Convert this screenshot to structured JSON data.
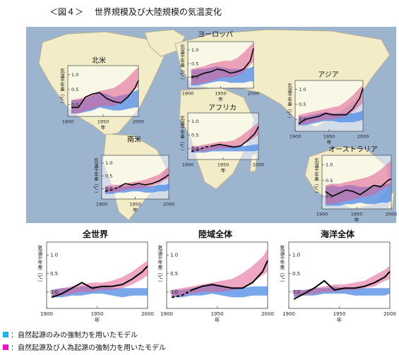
{
  "figure_title": "＜図４＞　 世界規模及び大陸規模の気温変化",
  "colors": {
    "ocean": "#9db4cf",
    "land": "#f2edc8",
    "land_stroke": "#b8b090",
    "natural": "#4d8ae6",
    "anthro": "#e05c92",
    "observed": "#000000",
    "legend_natural": "#19b4e8",
    "legend_anthro": "#e619c8"
  },
  "legend": [
    {
      "label": "：自然起源のみの強制力を用いたモデル",
      "color": "#19b4e8"
    },
    {
      "label": "：自然起源及び人為起源の強制力を用いたモデル",
      "color": "#e619c8"
    }
  ],
  "chart_data": [
    {
      "id": "north-america",
      "type": "area",
      "title": "北米",
      "ylabel": "気温平年差（℃）",
      "xlabel": "年",
      "yticks": [
        "1.0",
        "0.5",
        "0.0"
      ],
      "xticks": [
        "1900",
        "1950",
        "2000"
      ],
      "xlim": [
        1900,
        2000
      ],
      "ylim": [
        -0.4,
        1.3
      ],
      "years": [
        1905,
        1915,
        1925,
        1935,
        1945,
        1955,
        1965,
        1975,
        1985,
        1995,
        2000
      ],
      "natural": {
        "low": [
          -0.3,
          -0.3,
          -0.25,
          -0.2,
          -0.1,
          -0.15,
          -0.2,
          -0.2,
          -0.15,
          -0.1,
          -0.1
        ],
        "high": [
          0.15,
          0.15,
          0.2,
          0.3,
          0.4,
          0.35,
          0.25,
          0.3,
          0.35,
          0.45,
          0.5
        ]
      },
      "anthro": {
        "low": [
          -0.3,
          -0.3,
          -0.2,
          -0.15,
          -0.05,
          -0.05,
          -0.05,
          0.05,
          0.25,
          0.5,
          0.6
        ],
        "high": [
          0.15,
          0.2,
          0.25,
          0.35,
          0.45,
          0.5,
          0.55,
          0.7,
          0.9,
          1.15,
          1.25
        ]
      },
      "observed": [
        -0.1,
        -0.1,
        0.25,
        0.35,
        0.4,
        0.2,
        0.1,
        0.05,
        0.25,
        0.55,
        0.8
      ]
    },
    {
      "id": "europe",
      "type": "area",
      "title": "ヨーロッパ",
      "ylabel": "気温平年差（℃）",
      "xlabel": "年",
      "yticks": [
        "1.0",
        "0.5",
        "0.0"
      ],
      "xticks": [
        "1900",
        "1950",
        "2000"
      ],
      "xlim": [
        1900,
        2000
      ],
      "ylim": [
        -0.4,
        1.3
      ],
      "years": [
        1905,
        1915,
        1925,
        1935,
        1945,
        1955,
        1965,
        1975,
        1985,
        1995,
        2000
      ],
      "natural": {
        "low": [
          -0.3,
          -0.3,
          -0.25,
          -0.2,
          -0.15,
          -0.15,
          -0.2,
          -0.2,
          -0.2,
          -0.15,
          -0.15
        ],
        "high": [
          0.25,
          0.3,
          0.3,
          0.35,
          0.4,
          0.35,
          0.3,
          0.3,
          0.3,
          0.35,
          0.4
        ]
      },
      "anthro": {
        "low": [
          -0.25,
          -0.25,
          -0.2,
          -0.15,
          -0.05,
          0.0,
          0.0,
          0.05,
          0.2,
          0.45,
          0.55
        ],
        "high": [
          0.3,
          0.35,
          0.4,
          0.5,
          0.55,
          0.6,
          0.6,
          0.7,
          0.9,
          1.15,
          1.25
        ]
      },
      "observed": [
        0.0,
        0.05,
        0.15,
        0.2,
        0.3,
        0.25,
        0.15,
        0.2,
        0.3,
        0.6,
        1.05
      ]
    },
    {
      "id": "asia",
      "type": "area",
      "title": "アジア",
      "ylabel": "気温平年差（℃）",
      "xlabel": "年",
      "yticks": [
        "1.0",
        "0.5",
        "0.0"
      ],
      "xticks": [
        "1900",
        "1950",
        "2000"
      ],
      "xlim": [
        1900,
        2000
      ],
      "ylim": [
        -0.4,
        1.3
      ],
      "years": [
        1905,
        1915,
        1925,
        1935,
        1945,
        1955,
        1965,
        1975,
        1985,
        1995,
        2000
      ],
      "natural": {
        "low": [
          -0.2,
          -0.2,
          -0.15,
          -0.1,
          -0.05,
          -0.05,
          -0.1,
          -0.1,
          -0.1,
          -0.05,
          0.0
        ],
        "high": [
          0.1,
          0.1,
          0.15,
          0.2,
          0.25,
          0.2,
          0.2,
          0.2,
          0.2,
          0.25,
          0.3
        ]
      },
      "anthro": {
        "low": [
          -0.2,
          -0.15,
          -0.1,
          -0.05,
          0.0,
          0.0,
          0.05,
          0.1,
          0.25,
          0.45,
          0.55
        ],
        "high": [
          0.15,
          0.2,
          0.25,
          0.3,
          0.35,
          0.4,
          0.45,
          0.6,
          0.8,
          1.05,
          1.15
        ]
      },
      "observed": [
        -0.15,
        0.0,
        0.05,
        0.1,
        0.2,
        0.15,
        0.15,
        0.15,
        0.35,
        0.7,
        1.05
      ]
    },
    {
      "id": "africa",
      "type": "area",
      "title": "アフリカ",
      "ylabel": "気温平年差（℃）",
      "xlabel": "年",
      "yticks": [
        "1.0",
        "0.5",
        "0.0"
      ],
      "xticks": [
        "1900",
        "1950",
        "2000"
      ],
      "xlim": [
        1900,
        2000
      ],
      "ylim": [
        -0.4,
        1.3
      ],
      "years": [
        1905,
        1915,
        1925,
        1935,
        1945,
        1955,
        1965,
        1975,
        1985,
        1995,
        2000
      ],
      "natural": {
        "low": [
          -0.15,
          -0.15,
          -0.15,
          -0.1,
          -0.1,
          -0.1,
          -0.1,
          -0.1,
          -0.1,
          -0.1,
          -0.05
        ],
        "high": [
          0.05,
          0.05,
          0.1,
          0.1,
          0.15,
          0.15,
          0.1,
          0.1,
          0.1,
          0.15,
          0.15
        ]
      },
      "anthro": {
        "low": [
          -0.15,
          -0.1,
          -0.1,
          -0.05,
          0.0,
          0.0,
          0.05,
          0.1,
          0.25,
          0.4,
          0.5
        ],
        "high": [
          0.1,
          0.1,
          0.15,
          0.2,
          0.25,
          0.25,
          0.3,
          0.45,
          0.65,
          0.85,
          0.95
        ]
      },
      "observed": [
        -0.1,
        -0.05,
        0.05,
        0.1,
        0.15,
        0.1,
        0.05,
        0.1,
        0.3,
        0.55,
        0.8
      ],
      "observed_dashed_until": 1935
    },
    {
      "id": "south-america",
      "type": "area",
      "title": "南米",
      "ylabel": "気温平年差（℃）",
      "xlabel": "年",
      "yticks": [
        "1.0",
        "0.5",
        "0.0"
      ],
      "xticks": [
        "1900",
        "1950",
        "2000"
      ],
      "xlim": [
        1900,
        2000
      ],
      "ylim": [
        -0.4,
        1.3
      ],
      "years": [
        1905,
        1915,
        1925,
        1935,
        1945,
        1955,
        1965,
        1975,
        1985,
        1995,
        2000
      ],
      "natural": {
        "low": [
          -0.2,
          -0.2,
          -0.15,
          -0.15,
          -0.1,
          -0.1,
          -0.15,
          -0.15,
          -0.1,
          -0.1,
          -0.05
        ],
        "high": [
          0.05,
          0.05,
          0.1,
          0.1,
          0.15,
          0.15,
          0.1,
          0.1,
          0.15,
          0.15,
          0.2
        ]
      },
      "anthro": {
        "low": [
          -0.15,
          -0.15,
          -0.1,
          -0.05,
          0.0,
          0.0,
          0.05,
          0.1,
          0.2,
          0.35,
          0.4
        ],
        "high": [
          0.1,
          0.15,
          0.15,
          0.2,
          0.25,
          0.3,
          0.35,
          0.45,
          0.55,
          0.75,
          0.85
        ]
      },
      "observed": [
        -0.1,
        -0.05,
        0.05,
        0.2,
        0.15,
        0.2,
        0.15,
        0.2,
        0.3,
        0.45,
        0.55
      ],
      "observed_dashed_until": 1925
    },
    {
      "id": "australia",
      "type": "area",
      "title": "オーストラリア",
      "ylabel": "気温平年差（℃）",
      "xlabel": "年",
      "yticks": [
        "1.0",
        "0.5",
        "0.0"
      ],
      "xticks": [
        "1900",
        "1950",
        "2000"
      ],
      "xlim": [
        1900,
        2000
      ],
      "ylim": [
        -0.4,
        1.3
      ],
      "years": [
        1905,
        1915,
        1925,
        1935,
        1945,
        1955,
        1965,
        1975,
        1985,
        1995,
        2000
      ],
      "natural": {
        "low": [
          -0.3,
          -0.3,
          -0.3,
          -0.25,
          -0.25,
          -0.2,
          -0.25,
          -0.25,
          -0.2,
          -0.2,
          -0.15
        ],
        "high": [
          0.3,
          0.35,
          0.3,
          0.35,
          0.35,
          0.3,
          0.3,
          0.35,
          0.35,
          0.4,
          0.4
        ]
      },
      "anthro": {
        "low": [
          -0.25,
          -0.25,
          -0.2,
          -0.15,
          -0.1,
          -0.05,
          0.0,
          0.05,
          0.2,
          0.3,
          0.35
        ],
        "high": [
          0.35,
          0.4,
          0.4,
          0.45,
          0.5,
          0.55,
          0.6,
          0.7,
          0.85,
          1.05,
          1.15
        ]
      },
      "observed": [
        0.15,
        0.0,
        0.1,
        0.2,
        0.15,
        0.05,
        0.2,
        0.35,
        0.3,
        0.5,
        0.55
      ]
    },
    {
      "id": "global",
      "type": "area",
      "title": "全世界",
      "ylabel": "気温平年差（℃）",
      "xlabel": "年",
      "yticks": [
        "1.0",
        "0.5",
        "0.0"
      ],
      "xticks": [
        "1900",
        "1950",
        "2000"
      ],
      "xlim": [
        1900,
        2000
      ],
      "ylim": [
        -0.45,
        1.35
      ],
      "years": [
        1905,
        1915,
        1925,
        1935,
        1945,
        1955,
        1965,
        1975,
        1985,
        1995,
        2000
      ],
      "natural": {
        "low": [
          -0.15,
          -0.15,
          -0.1,
          -0.1,
          -0.05,
          -0.05,
          -0.1,
          -0.15,
          -0.1,
          -0.1,
          -0.1
        ],
        "high": [
          0.05,
          0.1,
          0.1,
          0.15,
          0.15,
          0.15,
          0.1,
          0.1,
          0.1,
          0.1,
          0.1
        ]
      },
      "anthro": {
        "low": [
          -0.15,
          -0.1,
          -0.05,
          0.0,
          0.0,
          0.05,
          0.05,
          0.1,
          0.2,
          0.35,
          0.45
        ],
        "high": [
          0.05,
          0.1,
          0.15,
          0.2,
          0.25,
          0.25,
          0.3,
          0.4,
          0.55,
          0.75,
          0.85
        ]
      },
      "observed": [
        -0.15,
        -0.05,
        0.1,
        0.25,
        0.1,
        0.15,
        0.15,
        0.2,
        0.35,
        0.55,
        0.7
      ]
    },
    {
      "id": "land",
      "type": "area",
      "title": "陸域全体",
      "ylabel": "気温平年差（℃）",
      "xlabel": "年",
      "yticks": [
        "1.0",
        "0.5",
        "0.0"
      ],
      "xticks": [
        "1900",
        "1950",
        "2000"
      ],
      "xlim": [
        1900,
        2000
      ],
      "ylim": [
        -0.45,
        1.35
      ],
      "years": [
        1905,
        1915,
        1925,
        1935,
        1945,
        1955,
        1965,
        1975,
        1985,
        1995,
        2000
      ],
      "natural": {
        "low": [
          -0.15,
          -0.15,
          -0.1,
          -0.1,
          -0.05,
          -0.1,
          -0.15,
          -0.15,
          -0.1,
          -0.1,
          -0.1
        ],
        "high": [
          0.05,
          0.05,
          0.1,
          0.15,
          0.2,
          0.15,
          0.1,
          0.1,
          0.15,
          0.15,
          0.15
        ]
      },
      "anthro": {
        "low": [
          -0.15,
          -0.1,
          -0.05,
          0.0,
          0.0,
          0.0,
          0.05,
          0.1,
          0.25,
          0.45,
          0.55
        ],
        "high": [
          0.05,
          0.1,
          0.15,
          0.2,
          0.25,
          0.3,
          0.35,
          0.5,
          0.7,
          0.95,
          1.15
        ]
      },
      "observed": [
        -0.15,
        -0.1,
        0.05,
        0.15,
        0.2,
        0.15,
        0.1,
        0.1,
        0.25,
        0.55,
        0.85
      ],
      "observed_dashed_until": 1925
    },
    {
      "id": "ocean",
      "type": "area",
      "title": "海洋全体",
      "ylabel": "気温平年差（℃）",
      "xlabel": "年",
      "yticks": [
        "1.0",
        "0.5",
        "0.0"
      ],
      "xticks": [
        "1900",
        "1950",
        "2000"
      ],
      "xlim": [
        1900,
        2000
      ],
      "ylim": [
        -0.45,
        1.35
      ],
      "years": [
        1905,
        1915,
        1925,
        1935,
        1945,
        1955,
        1965,
        1975,
        1985,
        1995,
        2000
      ],
      "natural": {
        "low": [
          -0.15,
          -0.1,
          -0.1,
          -0.05,
          -0.05,
          -0.05,
          -0.1,
          -0.1,
          -0.1,
          -0.1,
          -0.05
        ],
        "high": [
          0.05,
          0.05,
          0.1,
          0.1,
          0.15,
          0.1,
          0.1,
          0.1,
          0.1,
          0.1,
          0.1
        ]
      },
      "anthro": {
        "low": [
          -0.1,
          -0.1,
          -0.05,
          0.0,
          0.0,
          0.05,
          0.05,
          0.1,
          0.15,
          0.3,
          0.35
        ],
        "high": [
          0.05,
          0.05,
          0.1,
          0.15,
          0.2,
          0.2,
          0.25,
          0.3,
          0.45,
          0.6,
          0.7
        ]
      },
      "observed": [
        -0.2,
        -0.05,
        0.1,
        0.3,
        0.05,
        0.1,
        0.1,
        0.15,
        0.25,
        0.4,
        0.55
      ]
    }
  ]
}
